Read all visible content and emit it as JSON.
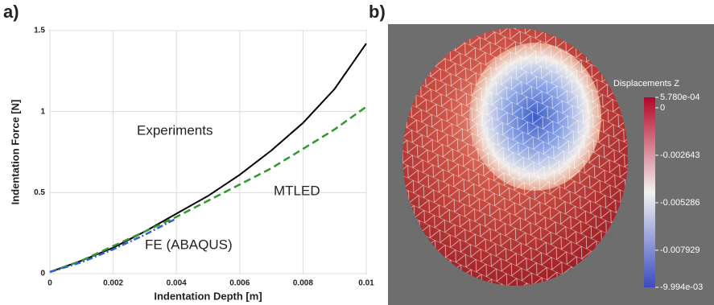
{
  "chart_data": [
    {
      "type": "line",
      "panel_label": "a)",
      "x_label": "Indentation Depth [m]",
      "y_label": "Indentation Force [N]",
      "x": [
        0,
        0.001,
        0.002,
        0.003,
        0.004,
        0.005,
        0.006,
        0.007,
        0.008,
        0.009,
        0.01
      ],
      "series": [
        {
          "name": "Experiments",
          "color": "#000000",
          "dash": "solid",
          "values": [
            0.01,
            0.08,
            0.16,
            0.26,
            0.37,
            0.48,
            0.61,
            0.76,
            0.93,
            1.14,
            1.42
          ]
        },
        {
          "name": "MTLED",
          "color": "#2e9a2e",
          "dash": "dashed",
          "values": [
            0.01,
            0.08,
            0.17,
            0.26,
            0.35,
            0.45,
            0.55,
            0.65,
            0.77,
            0.89,
            1.03
          ]
        },
        {
          "name": "FE (ABAQUS)",
          "color": "#3a5fcd",
          "dash": "dashdot",
          "values": [
            0.01,
            0.07,
            0.15,
            0.24,
            0.34,
            null,
            null,
            null,
            null,
            null,
            null
          ]
        }
      ],
      "xlim": [
        0,
        0.01
      ],
      "xticks": [
        0,
        0.002,
        0.004,
        0.006,
        0.008,
        0.01
      ],
      "ylim": [
        0,
        1.5
      ],
      "yticks": [
        0,
        0.5,
        1,
        1.5
      ],
      "grid": true
    },
    {
      "type": "colorbar",
      "panel_label": "b)",
      "title": "Displacements Z",
      "colors": [
        "#b40426",
        "#f2f2f2",
        "#3b4cc0"
      ],
      "ylim": [
        -0.009994,
        0.000578
      ],
      "yticks": [
        {
          "value": 0.000578,
          "label": "5.780e-04"
        },
        0,
        -0.002643,
        -0.005286,
        -0.007929,
        {
          "value": -0.009994,
          "label": "-9.994e-03"
        }
      ]
    }
  ]
}
